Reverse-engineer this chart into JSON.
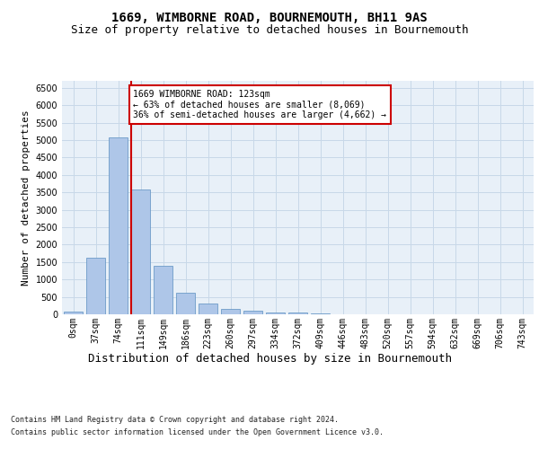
{
  "title": "1669, WIMBORNE ROAD, BOURNEMOUTH, BH11 9AS",
  "subtitle": "Size of property relative to detached houses in Bournemouth",
  "xlabel": "Distribution of detached houses by size in Bournemouth",
  "ylabel": "Number of detached properties",
  "footer_line1": "Contains HM Land Registry data © Crown copyright and database right 2024.",
  "footer_line2": "Contains public sector information licensed under the Open Government Licence v3.0.",
  "bin_labels": [
    "0sqm",
    "37sqm",
    "74sqm",
    "111sqm",
    "149sqm",
    "186sqm",
    "223sqm",
    "260sqm",
    "297sqm",
    "334sqm",
    "372sqm",
    "409sqm",
    "446sqm",
    "483sqm",
    "520sqm",
    "557sqm",
    "594sqm",
    "632sqm",
    "669sqm",
    "706sqm",
    "743sqm"
  ],
  "bar_values": [
    75,
    1625,
    5075,
    3575,
    1400,
    620,
    310,
    155,
    100,
    60,
    50,
    30,
    0,
    0,
    0,
    0,
    0,
    0,
    0,
    0,
    0
  ],
  "bar_color": "#aec6e8",
  "bar_edgecolor": "#5a8fc0",
  "property_line_bin": 3,
  "property_line_color": "#cc0000",
  "annotation_text": "1669 WIMBORNE ROAD: 123sqm\n← 63% of detached houses are smaller (8,069)\n36% of semi-detached houses are larger (4,662) →",
  "annotation_box_color": "#cc0000",
  "ylim": [
    0,
    6700
  ],
  "yticks": [
    0,
    500,
    1000,
    1500,
    2000,
    2500,
    3000,
    3500,
    4000,
    4500,
    5000,
    5500,
    6000,
    6500
  ],
  "grid_color": "#c8d8e8",
  "background_color": "#e8f0f8",
  "fig_background": "#ffffff",
  "title_fontsize": 10,
  "subtitle_fontsize": 9,
  "ylabel_fontsize": 8,
  "xlabel_fontsize": 9,
  "tick_fontsize": 7,
  "annotation_fontsize": 7,
  "footer_fontsize": 6
}
